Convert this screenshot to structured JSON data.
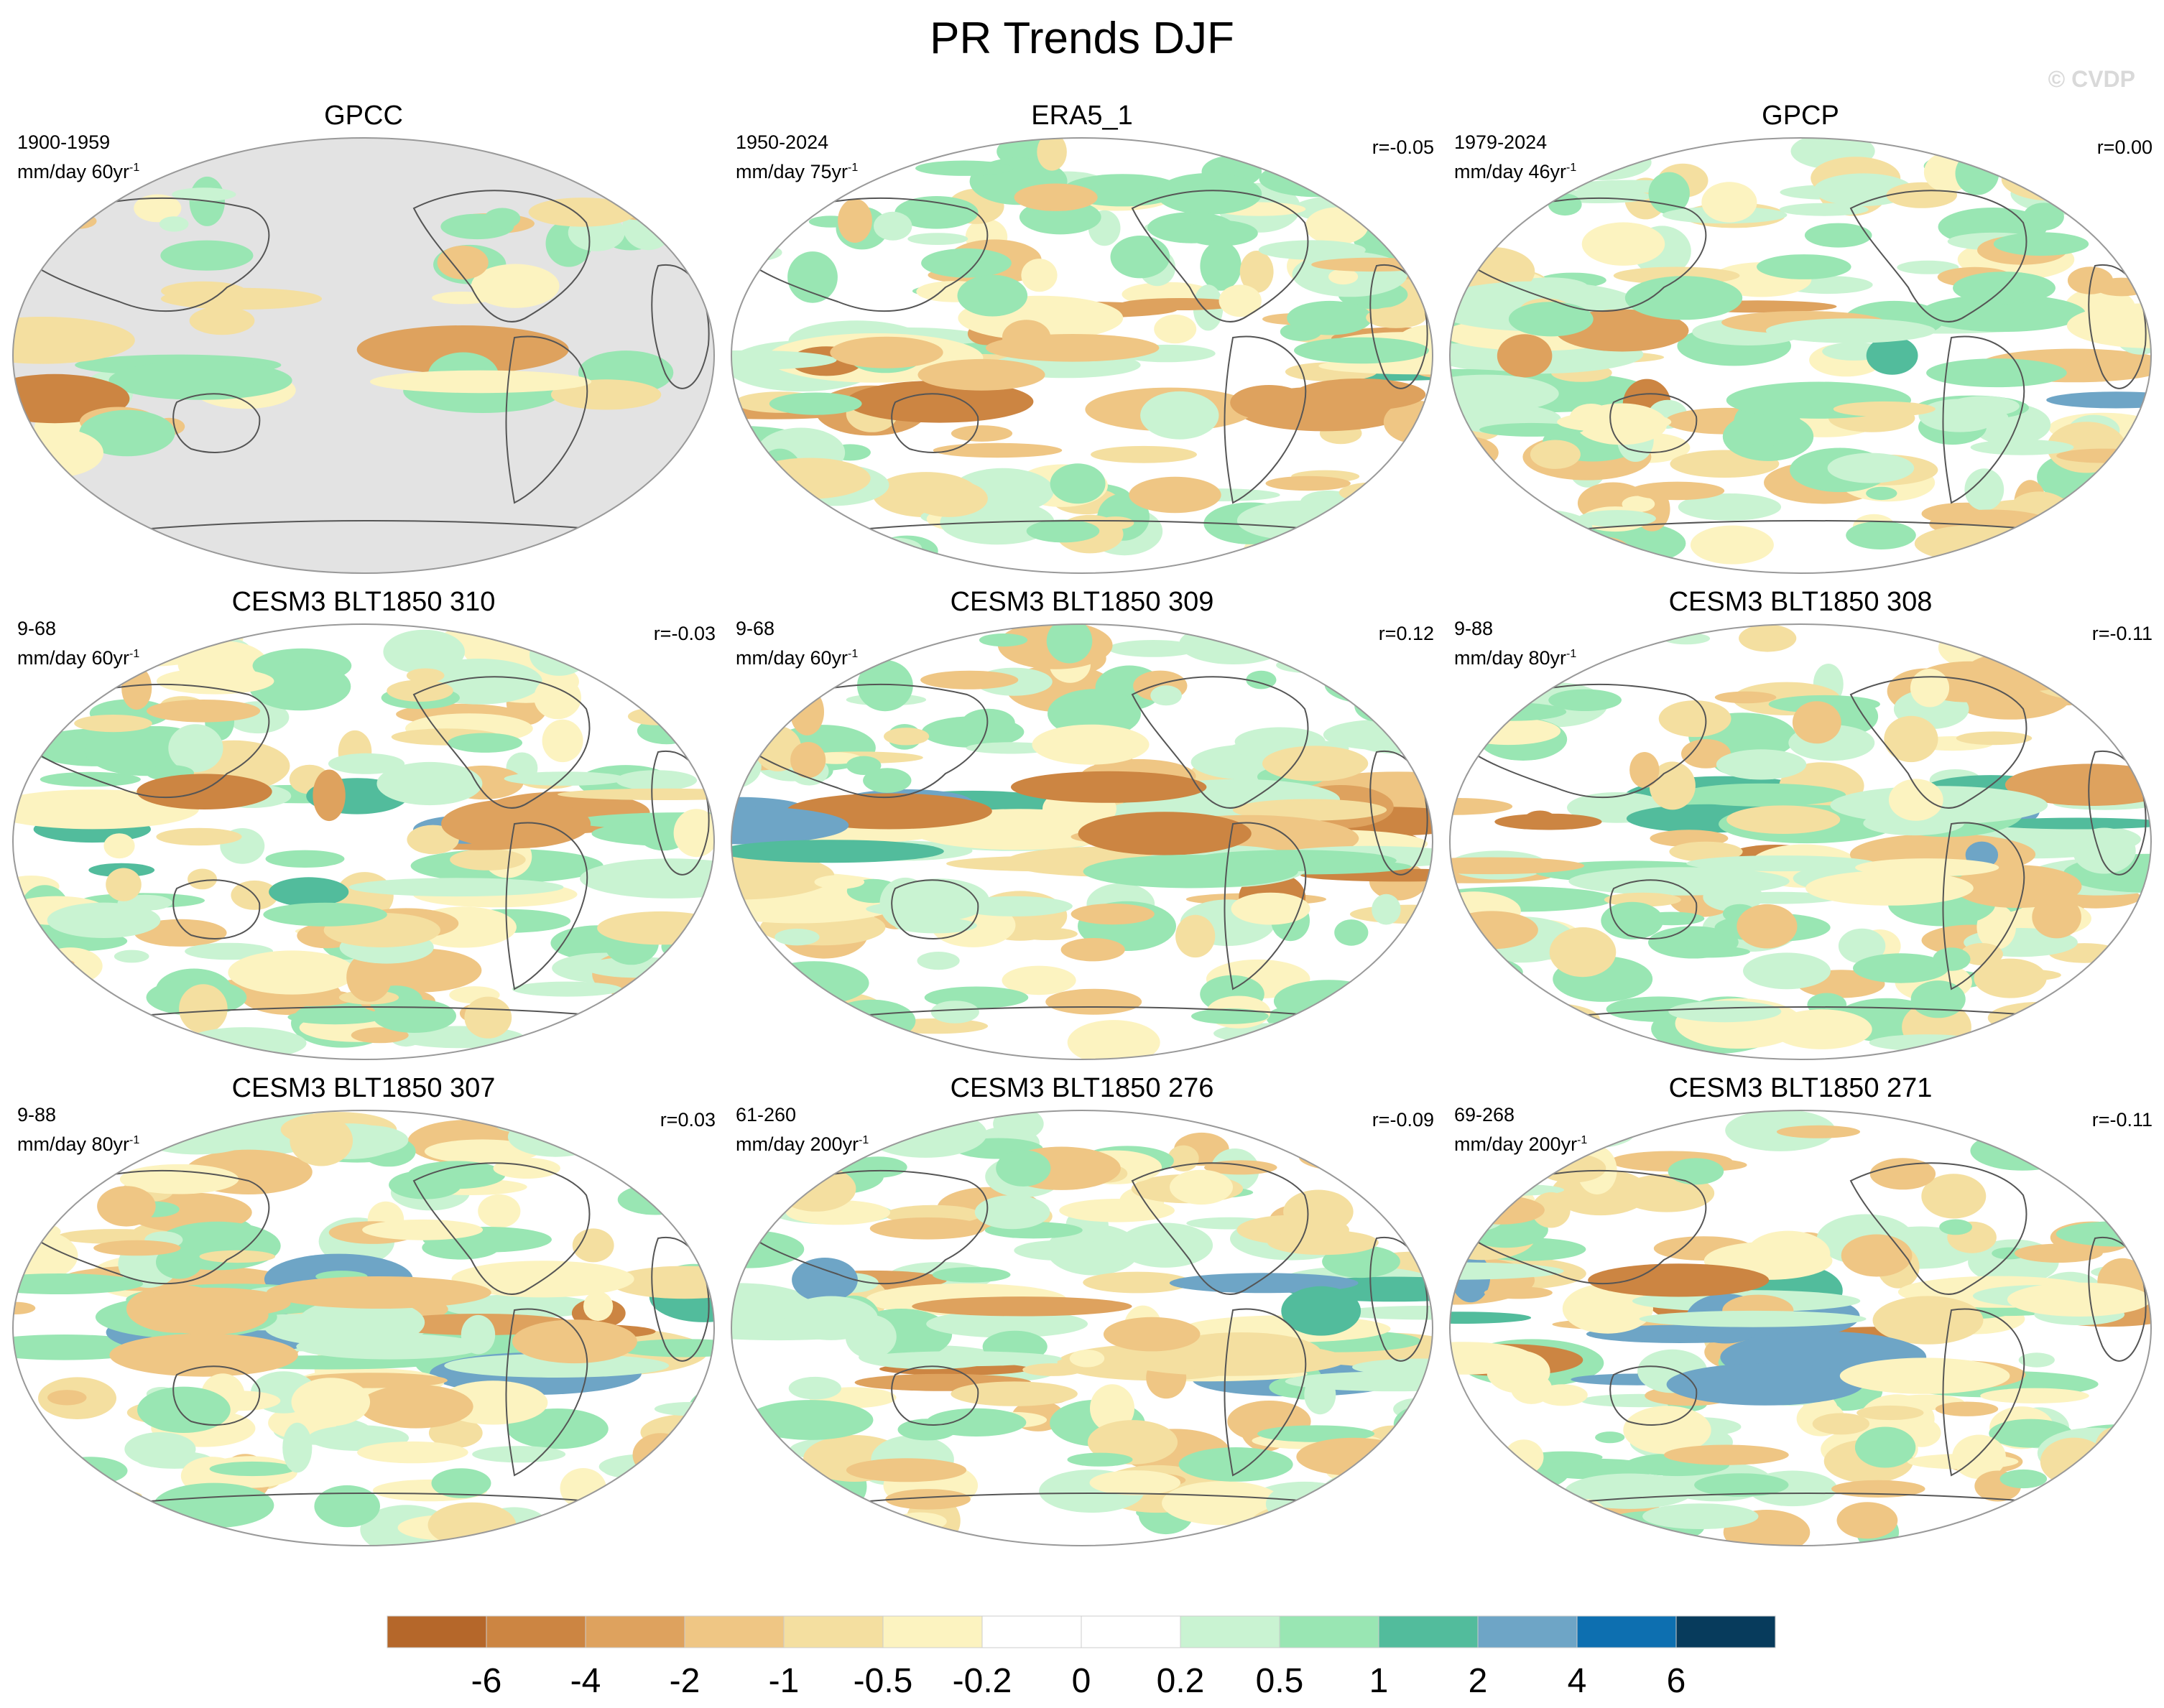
{
  "figure": {
    "title": "PR Trends DJF",
    "watermark": "© CVDP"
  },
  "panels": [
    {
      "title": "GPCC",
      "period": "1900-1959",
      "units": "mm/day 60yr",
      "r": "",
      "masked": true
    },
    {
      "title": "ERA5_1",
      "period": "1950-2024",
      "units": "mm/day 75yr",
      "r": "r=-0.05",
      "masked": false
    },
    {
      "title": "GPCP",
      "period": "1979-2024",
      "units": "mm/day 46yr",
      "r": "r=0.00",
      "masked": false
    },
    {
      "title": "CESM3 BLT1850 310",
      "period": "9-68",
      "units": "mm/day 60yr",
      "r": "r=-0.03",
      "masked": false
    },
    {
      "title": "CESM3 BLT1850 309",
      "period": "9-68",
      "units": "mm/day 60yr",
      "r": "r=0.12",
      "masked": false
    },
    {
      "title": "CESM3 BLT1850 308",
      "period": "9-88",
      "units": "mm/day 80yr",
      "r": "r=-0.11",
      "masked": false
    },
    {
      "title": "CESM3 BLT1850 307",
      "period": "9-88",
      "units": "mm/day 80yr",
      "r": "r=0.03",
      "masked": false
    },
    {
      "title": "CESM3 BLT1850 276",
      "period": "61-260",
      "units": "mm/day 200yr",
      "r": "r=-0.09",
      "masked": false
    },
    {
      "title": "CESM3 BLT1850 271",
      "period": "69-268",
      "units": "mm/day 200yr",
      "r": "r=-0.11",
      "masked": false
    }
  ],
  "colorbar": {
    "labels": [
      "-6",
      "-4",
      "-2",
      "-1",
      "-0.5",
      "-0.2",
      "0",
      "0.2",
      "0.5",
      "1",
      "2",
      "4",
      "6"
    ],
    "colors": [
      "#b5672a",
      "#cc8542",
      "#dea25e",
      "#efc684",
      "#f4dfa0",
      "#fcf3c0",
      "#ffffff",
      "#ffffff",
      "#c9f3d2",
      "#99e6b3",
      "#52bc9c",
      "#6ea5c6",
      "#0d6fb0",
      "#073b5c"
    ]
  },
  "colors": {
    "land_mask": "#e3e3e3",
    "coast": "#555555"
  }
}
